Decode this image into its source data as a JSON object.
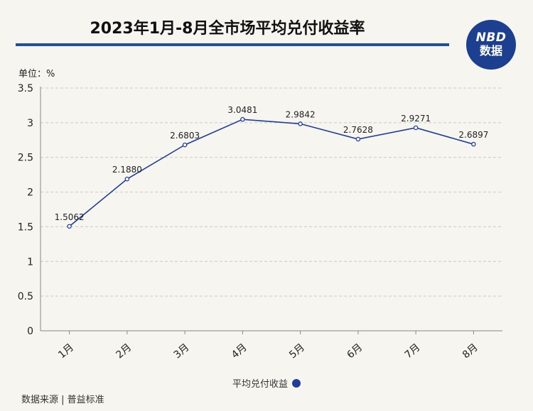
{
  "header": {
    "title": "2023年1月-8月全市场平均兑付收益率",
    "logo_top": "NBD",
    "logo_bottom": "数据"
  },
  "unit_label": "单位：%",
  "source_label": "数据来源 | 普益标准",
  "colors": {
    "line": "#1f3d99",
    "title_rule": "#1f4ea3",
    "logo_bg": "#1d3f8f"
  },
  "chart_data": {
    "type": "line",
    "title": "2023年1月-8月全市场平均兑付收益率",
    "categories": [
      "1月",
      "2月",
      "3月",
      "4月",
      "5月",
      "6月",
      "7月",
      "8月"
    ],
    "series": [
      {
        "name": "平均兑付收益",
        "values": [
          1.5062,
          2.188,
          2.6803,
          3.0481,
          2.9842,
          2.7628,
          2.9271,
          2.6897
        ],
        "labels": [
          "1.5062",
          "2.1880",
          "2.6803",
          "3.0481",
          "2.9842",
          "2.7628",
          "2.9271",
          "2.6897"
        ]
      }
    ],
    "yticks": [
      "0",
      "0.5",
      "1",
      "1.5",
      "2",
      "2.5",
      "3",
      "3.5"
    ],
    "ylim": [
      0,
      3.5
    ],
    "grid": true,
    "legend_position": "bottom"
  }
}
